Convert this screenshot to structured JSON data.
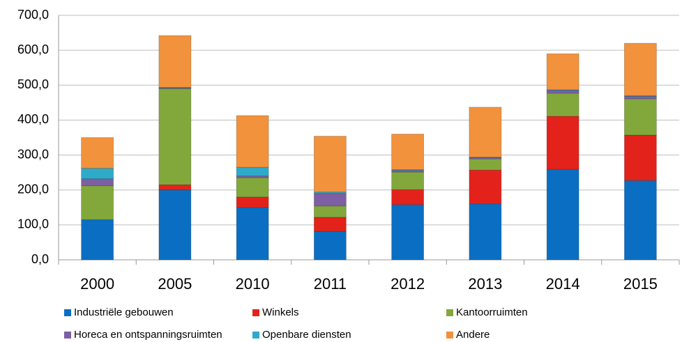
{
  "chart_data": {
    "type": "stacked_bar",
    "categories": [
      "2000",
      "2005",
      "2010",
      "2011",
      "2012",
      "2013",
      "2014",
      "2015"
    ],
    "series": [
      {
        "name": "Industriële gebouwen",
        "color": "#0a6fc2",
        "values": [
          115,
          200,
          150,
          82,
          158,
          160,
          259,
          227
        ]
      },
      {
        "name": "Winkels",
        "color": "#e3231b",
        "values": [
          0,
          15,
          30,
          40,
          43,
          97,
          152,
          130
        ]
      },
      {
        "name": "Kantoorruimten",
        "color": "#82a83c",
        "values": [
          97,
          275,
          55,
          32,
          50,
          32,
          66,
          104
        ]
      },
      {
        "name": "Horeca en ontspanningsruimten",
        "color": "#7d5fa3",
        "values": [
          20,
          2,
          5,
          36,
          5,
          3,
          8,
          7
        ]
      },
      {
        "name": "Openbare diensten",
        "color": "#2eaacb",
        "values": [
          30,
          2,
          25,
          4,
          2,
          2,
          2,
          2
        ]
      },
      {
        "name": "Andere",
        "color": "#f2923d",
        "values": [
          88,
          148,
          148,
          160,
          102,
          143,
          103,
          150
        ]
      }
    ],
    "ylim": [
      0,
      700
    ],
    "yticks": [
      {
        "value": 0,
        "label": "0,0"
      },
      {
        "value": 100,
        "label": "100,0"
      },
      {
        "value": 200,
        "label": "200,0"
      },
      {
        "value": 300,
        "label": "300,0"
      },
      {
        "value": 400,
        "label": "400,0"
      },
      {
        "value": 500,
        "label": "500,0"
      },
      {
        "value": 600,
        "label": "600,0"
      },
      {
        "value": 700,
        "label": "700,0"
      }
    ],
    "grid": true
  }
}
